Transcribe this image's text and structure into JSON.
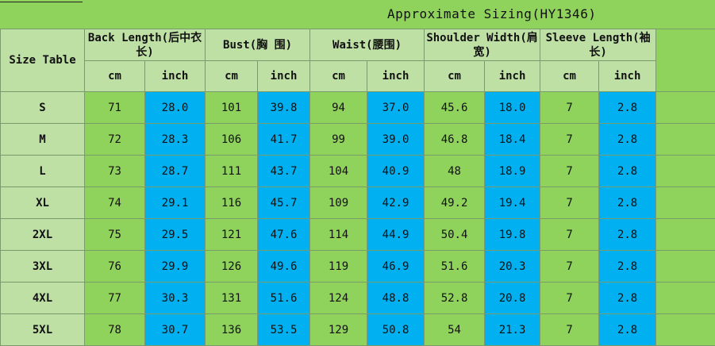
{
  "title": "Approximate Sizing(HY1346)",
  "size_table_label": "Size Table",
  "columns": [
    {
      "label": "Back Length(后中衣长)"
    },
    {
      "label": "Bust(胸 围)"
    },
    {
      "label": "Waist(腰围)"
    },
    {
      "label": "Shoulder Width(肩宽)"
    },
    {
      "label": "Sleeve Length(袖 长)"
    }
  ],
  "unit_cm": "cm",
  "unit_inch": "inch",
  "rows": [
    {
      "size": "S",
      "v": [
        "71",
        "28.0",
        "101",
        "39.8",
        "94",
        "37.0",
        "45.6",
        "18.0",
        "7",
        "2.8"
      ]
    },
    {
      "size": "M",
      "v": [
        "72",
        "28.3",
        "106",
        "41.7",
        "99",
        "39.0",
        "46.8",
        "18.4",
        "7",
        "2.8"
      ]
    },
    {
      "size": "L",
      "v": [
        "73",
        "28.7",
        "111",
        "43.7",
        "104",
        "40.9",
        "48",
        "18.9",
        "7",
        "2.8"
      ]
    },
    {
      "size": "XL",
      "v": [
        "74",
        "29.1",
        "116",
        "45.7",
        "109",
        "42.9",
        "49.2",
        "19.4",
        "7",
        "2.8"
      ]
    },
    {
      "size": "2XL",
      "v": [
        "75",
        "29.5",
        "121",
        "47.6",
        "114",
        "44.9",
        "50.4",
        "19.8",
        "7",
        "2.8"
      ]
    },
    {
      "size": "3XL",
      "v": [
        "76",
        "29.9",
        "126",
        "49.6",
        "119",
        "46.9",
        "51.6",
        "20.3",
        "7",
        "2.8"
      ]
    },
    {
      "size": "4XL",
      "v": [
        "77",
        "30.3",
        "131",
        "51.6",
        "124",
        "48.8",
        "52.8",
        "20.8",
        "7",
        "2.8"
      ]
    },
    {
      "size": "5XL",
      "v": [
        "78",
        "30.7",
        "136",
        "53.5",
        "129",
        "50.8",
        "54",
        "21.3",
        "7",
        "2.8"
      ]
    }
  ],
  "colors": {
    "green": "#8fd25c",
    "blue": "#00b0f0",
    "header": "#bfe0a5"
  }
}
